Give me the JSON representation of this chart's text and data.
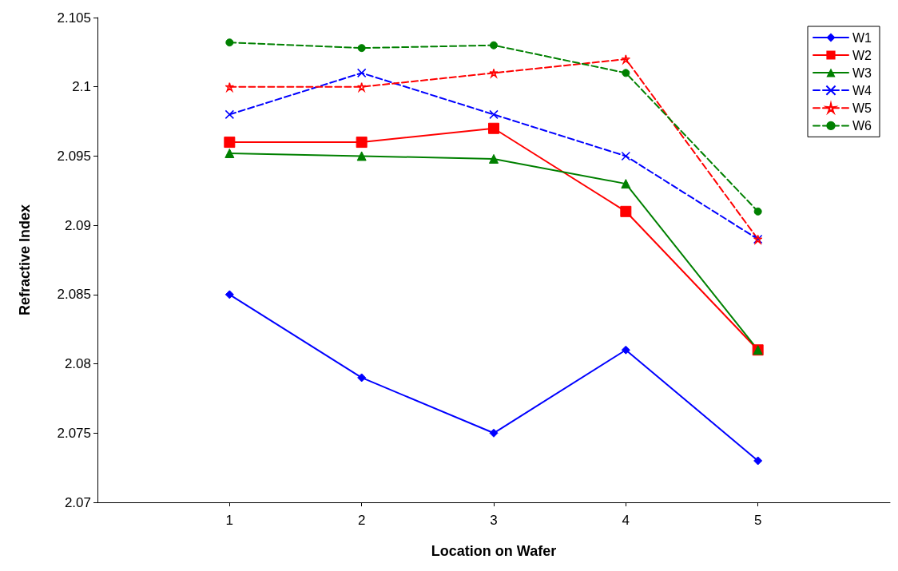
{
  "chart_data": {
    "type": "line",
    "xlabel": "Location on Wafer",
    "ylabel": "Refractive Index",
    "x": [
      1,
      2,
      3,
      4,
      5
    ],
    "xlim": [
      0,
      6
    ],
    "xticks": [
      1,
      2,
      3,
      4,
      5
    ],
    "ylim": [
      2.07,
      2.105
    ],
    "yticks": [
      2.07,
      2.075,
      2.08,
      2.085,
      2.09,
      2.095,
      2.1,
      2.105
    ],
    "grid": false,
    "legend": "top right",
    "series": [
      {
        "name": "W1",
        "color": "#0000ff",
        "marker": "diamond",
        "line_style": "solid",
        "values": [
          2.085,
          2.079,
          2.075,
          2.081,
          2.073
        ]
      },
      {
        "name": "W2",
        "color": "#ff0000",
        "marker": "square",
        "line_style": "solid",
        "values": [
          2.096,
          2.096,
          2.097,
          2.091,
          2.081
        ]
      },
      {
        "name": "W3",
        "color": "#008000",
        "marker": "triangle",
        "line_style": "solid",
        "values": [
          2.0952,
          2.095,
          2.0948,
          2.093,
          2.081
        ]
      },
      {
        "name": "W4",
        "color": "#0000ff",
        "marker": "cross",
        "line_style": "dashed",
        "values": [
          2.098,
          2.101,
          2.098,
          2.095,
          2.089
        ]
      },
      {
        "name": "W5",
        "color": "#ff0000",
        "marker": "star",
        "line_style": "dashed",
        "values": [
          2.1,
          2.1,
          2.101,
          2.102,
          2.089
        ]
      },
      {
        "name": "W6",
        "color": "#008000",
        "marker": "circle",
        "line_style": "dashed",
        "values": [
          2.1032,
          2.1028,
          2.103,
          2.101,
          2.091
        ]
      }
    ]
  }
}
